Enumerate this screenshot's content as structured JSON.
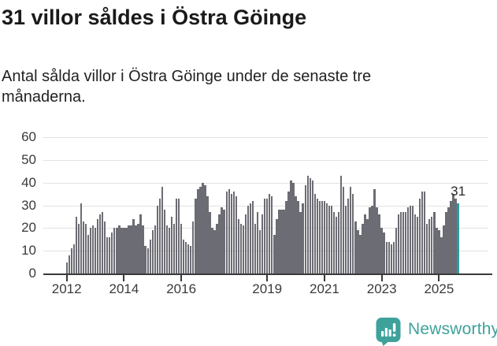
{
  "header": {
    "title": "31 villor såldes i Östra Göinge",
    "subtitle": "Antal sålda villor i Östra Göinge under de senaste tre månaderna."
  },
  "chart_data": {
    "type": "bar",
    "title": "31 villor såldes i Östra Göinge",
    "subtitle": "Antal sålda villor i Östra Göinge under de senaste tre månaderna.",
    "frequency": "monthly",
    "x_start": "2012-01",
    "x_end": "2025-09",
    "values": [
      5,
      8,
      11,
      13,
      25,
      22,
      31,
      23,
      22,
      17,
      20,
      21,
      20,
      24,
      26,
      27,
      23,
      16,
      16,
      18,
      20,
      20,
      21,
      20,
      20,
      20,
      21,
      21,
      24,
      21,
      22,
      26,
      21,
      12,
      11,
      15,
      19,
      21,
      30,
      33,
      38,
      28,
      21,
      20,
      25,
      22,
      33,
      33,
      22,
      15,
      14,
      13,
      12,
      23,
      33,
      37,
      38,
      40,
      39,
      34,
      27,
      20,
      19,
      22,
      26,
      29,
      28,
      36,
      37,
      35,
      36,
      34,
      24,
      22,
      21,
      26,
      30,
      31,
      32,
      22,
      27,
      19,
      26,
      33,
      33,
      35,
      34,
      17,
      24,
      28,
      28,
      28,
      32,
      36,
      41,
      40,
      34,
      32,
      27,
      31,
      39,
      43,
      42,
      41,
      35,
      33,
      32,
      32,
      32,
      31,
      30,
      30,
      27,
      25,
      27,
      43,
      38,
      30,
      33,
      38,
      35,
      23,
      19,
      17,
      22,
      26,
      24,
      29,
      30,
      37,
      29,
      26,
      20,
      18,
      14,
      14,
      13,
      14,
      20,
      26,
      27,
      27,
      27,
      29,
      30,
      30,
      26,
      25,
      33,
      36,
      36,
      22,
      24,
      25,
      27,
      20,
      19,
      16,
      21,
      27,
      29,
      32,
      35,
      33,
      31
    ],
    "highlight_index": 164,
    "highlight_value": 31,
    "annotation": "31",
    "ylim": [
      0,
      60
    ],
    "y_ticks": [
      0,
      10,
      20,
      30,
      40,
      50,
      60
    ],
    "x_tick_years": [
      2012,
      2014,
      2016,
      2019,
      2021,
      2023,
      2025
    ],
    "grid": true,
    "legend": "none",
    "bar_color": "#6c6c74",
    "highlight_color": "#299c9e"
  },
  "footer": {
    "brand": "Newsworthy"
  }
}
